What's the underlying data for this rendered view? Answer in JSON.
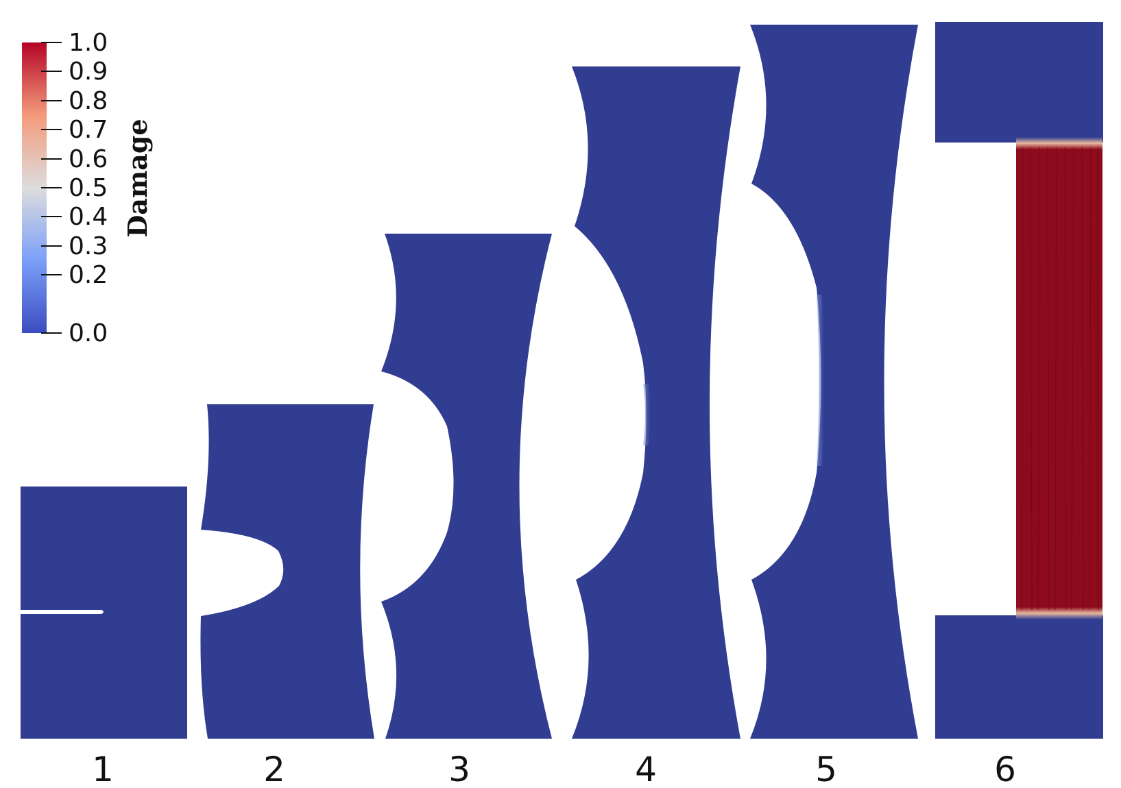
{
  "colorbar": {
    "title": "Damage",
    "ticks": [
      "1.0",
      "0.9",
      "0.8",
      "0.7",
      "0.6",
      "0.5",
      "0.4",
      "0.3",
      "0.2",
      "0.0"
    ],
    "colors": {
      "low": "#3b4cc0",
      "mid": "#dddddd",
      "high": "#b40426"
    }
  },
  "specimen": {
    "intact_color": "#303d90",
    "damaged_color": "#8e0b1e"
  },
  "stages": [
    {
      "label": "1"
    },
    {
      "label": "2"
    },
    {
      "label": "3"
    },
    {
      "label": "4"
    },
    {
      "label": "5"
    },
    {
      "label": "6"
    }
  ]
}
